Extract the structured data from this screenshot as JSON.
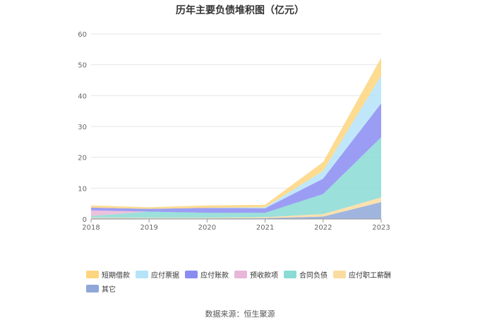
{
  "title": "历年主要负债堆积图（亿元）",
  "source": "数据来源：恒生聚源",
  "chart_data": {
    "type": "area",
    "stacked": true,
    "x": [
      "2018",
      "2019",
      "2020",
      "2021",
      "2022",
      "2023"
    ],
    "ylim": [
      0,
      60
    ],
    "yticks": [
      "0",
      "10",
      "20",
      "30",
      "40",
      "50",
      "60"
    ],
    "grid": true,
    "legend_position": "bottom",
    "series": [
      {
        "name": "其它",
        "color": "#8fa8d8",
        "values": [
          0.3,
          0.2,
          0.2,
          0.3,
          0.8,
          5.5
        ]
      },
      {
        "name": "应付职工薪酬",
        "color": "#fbdca0",
        "values": [
          0.2,
          0.2,
          0.2,
          0.3,
          0.8,
          1.5
        ]
      },
      {
        "name": "合同负债",
        "color": "#8adbd4",
        "values": [
          0.5,
          2.0,
          1.6,
          1.4,
          6.5,
          19.5
        ]
      },
      {
        "name": "预收款项",
        "color": "#e8b6d8",
        "values": [
          1.8,
          0.0,
          0.0,
          0.0,
          0.0,
          0.0
        ]
      },
      {
        "name": "应付账款",
        "color": "#8a8cf2",
        "values": [
          0.9,
          0.9,
          1.6,
          1.5,
          5.0,
          11.0
        ]
      },
      {
        "name": "应付票据",
        "color": "#b5e3f8",
        "values": [
          0.0,
          0.0,
          0.0,
          0.3,
          2.5,
          9.0
        ]
      },
      {
        "name": "短期借款",
        "color": "#fdd57e",
        "values": [
          0.7,
          0.5,
          0.8,
          0.8,
          2.9,
          5.8
        ]
      }
    ],
    "legend_order": [
      "短期借款",
      "应付票据",
      "应付账款",
      "预收款项",
      "合同负债",
      "应付职工薪酬",
      "其它"
    ]
  }
}
